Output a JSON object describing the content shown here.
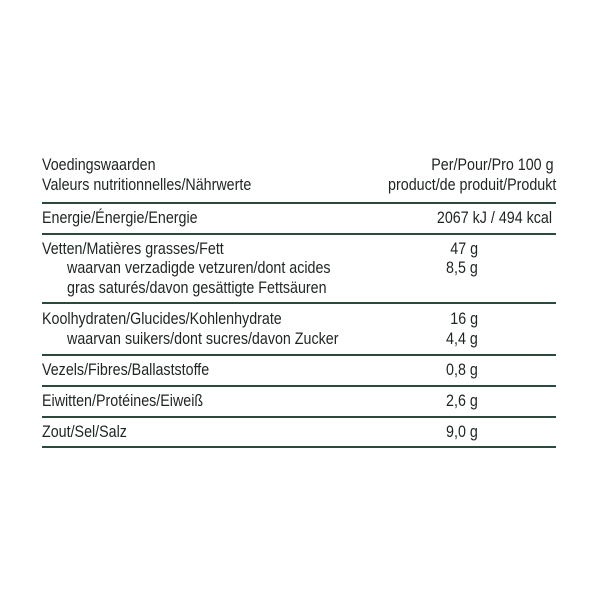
{
  "header": {
    "label_lines": [
      "Voedingswaarden",
      "Valeurs nutritionnelles/Nährwerte"
    ],
    "value_lines": [
      "Per/Pour/Pro 100 g",
      "product/de produit/Produkt"
    ]
  },
  "rows": [
    {
      "label": "Energie/Énergie/Energie",
      "value": "2067 kJ / 494 kcal"
    },
    {
      "label": "Vetten/Matières grasses/Fett",
      "value": "47 g",
      "sub_label_lines": [
        "waarvan verzadigde vetzuren/dont acides",
        "gras saturés/davon gesättigte Fettsäuren"
      ],
      "sub_value": "8,5 g"
    },
    {
      "label": "Koolhydraten/Glucides/Kohlenhydrate",
      "value": "16 g",
      "sub_label_lines": [
        "waarvan suikers/dont sucres/davon Zucker"
      ],
      "sub_value": "4,4 g"
    },
    {
      "label": "Vezels/Fibres/Ballaststoffe",
      "value": "0,8 g"
    },
    {
      "label": "Eiwitten/Protéines/Eiweiß",
      "value": "2,6 g"
    },
    {
      "label": "Zout/Sel/Salz",
      "value": "9,0 g"
    }
  ],
  "colors": {
    "rule": "#2c4a3c",
    "text": "#1e2420"
  }
}
